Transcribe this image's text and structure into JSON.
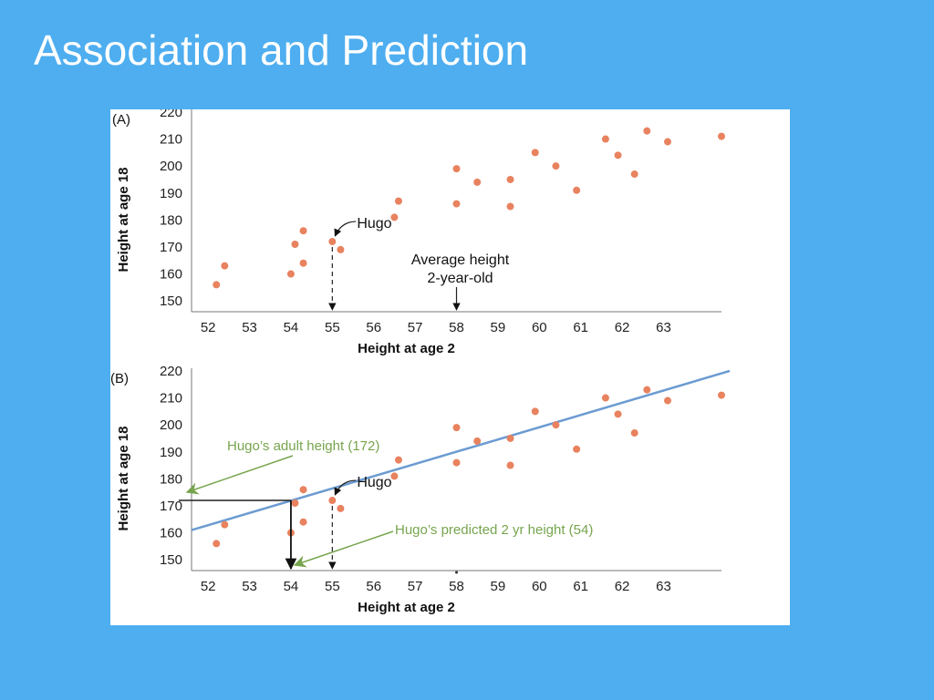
{
  "slide": {
    "title": "Association and Prediction"
  },
  "chart_data": [
    {
      "type": "scatter",
      "panel_label": "(A)",
      "xlabel": "Height at age 2",
      "ylabel": "Height at age 18",
      "xlim": [
        51.6,
        64.4
      ],
      "ylim": [
        146,
        221
      ],
      "x_ticks": [
        "52",
        "53",
        "54",
        "55",
        "56",
        "57",
        "58",
        "59",
        "60",
        "61",
        "62",
        "63"
      ],
      "y_ticks": [
        "150",
        "160",
        "170",
        "180",
        "190",
        "200",
        "210",
        "220"
      ],
      "points": [
        {
          "x": 52.2,
          "y": 156
        },
        {
          "x": 52.4,
          "y": 163
        },
        {
          "x": 54.0,
          "y": 160
        },
        {
          "x": 54.1,
          "y": 171
        },
        {
          "x": 54.3,
          "y": 176
        },
        {
          "x": 54.3,
          "y": 164
        },
        {
          "x": 55.0,
          "y": 172
        },
        {
          "x": 55.2,
          "y": 169
        },
        {
          "x": 56.5,
          "y": 181
        },
        {
          "x": 56.6,
          "y": 187
        },
        {
          "x": 58.0,
          "y": 186
        },
        {
          "x": 58.0,
          "y": 199
        },
        {
          "x": 58.5,
          "y": 194
        },
        {
          "x": 59.3,
          "y": 195
        },
        {
          "x": 59.3,
          "y": 185
        },
        {
          "x": 59.9,
          "y": 205
        },
        {
          "x": 60.4,
          "y": 200
        },
        {
          "x": 60.9,
          "y": 191
        },
        {
          "x": 61.6,
          "y": 210
        },
        {
          "x": 61.9,
          "y": 204
        },
        {
          "x": 62.3,
          "y": 197
        },
        {
          "x": 62.6,
          "y": 213
        },
        {
          "x": 63.1,
          "y": 209
        },
        {
          "x": 64.4,
          "y": 211
        }
      ],
      "annotations": {
        "hugo": "Hugo",
        "average_line1": "Average height",
        "average_line2": "2-year-old"
      }
    },
    {
      "type": "scatter",
      "panel_label": "(B)",
      "xlabel": "Height at age 2",
      "ylabel": "Height at age 18",
      "xlim": [
        51.6,
        64.4
      ],
      "ylim": [
        146,
        221
      ],
      "x_ticks": [
        "52",
        "53",
        "54",
        "55",
        "56",
        "57",
        "58",
        "59",
        "60",
        "61",
        "62",
        "63"
      ],
      "y_ticks": [
        "150",
        "160",
        "170",
        "180",
        "190",
        "200",
        "210",
        "220"
      ],
      "points": [
        {
          "x": 52.2,
          "y": 156
        },
        {
          "x": 52.4,
          "y": 163
        },
        {
          "x": 54.0,
          "y": 160
        },
        {
          "x": 54.1,
          "y": 171
        },
        {
          "x": 54.3,
          "y": 176
        },
        {
          "x": 54.3,
          "y": 164
        },
        {
          "x": 55.0,
          "y": 172
        },
        {
          "x": 55.2,
          "y": 169
        },
        {
          "x": 56.5,
          "y": 181
        },
        {
          "x": 56.6,
          "y": 187
        },
        {
          "x": 58.0,
          "y": 186
        },
        {
          "x": 58.0,
          "y": 199
        },
        {
          "x": 58.5,
          "y": 194
        },
        {
          "x": 59.3,
          "y": 195
        },
        {
          "x": 59.3,
          "y": 185
        },
        {
          "x": 59.9,
          "y": 205
        },
        {
          "x": 60.4,
          "y": 200
        },
        {
          "x": 60.9,
          "y": 191
        },
        {
          "x": 61.6,
          "y": 210
        },
        {
          "x": 61.9,
          "y": 204
        },
        {
          "x": 62.3,
          "y": 197
        },
        {
          "x": 62.6,
          "y": 213
        },
        {
          "x": 63.1,
          "y": 209
        },
        {
          "x": 64.4,
          "y": 211
        }
      ],
      "regression_line": {
        "x": [
          51.6,
          64.6
        ],
        "y": [
          161,
          220
        ]
      },
      "annotations": {
        "hugo": "Hugo",
        "adult_height": "Hugo’s adult height (172)",
        "predicted_height": "Hugo’s predicted 2 yr height (54)"
      },
      "colors": {
        "regression": "#6b9bd2",
        "annotation": "#77a54e"
      }
    }
  ],
  "colors": {
    "background": "#4eaef0",
    "point": "#e8825f"
  }
}
